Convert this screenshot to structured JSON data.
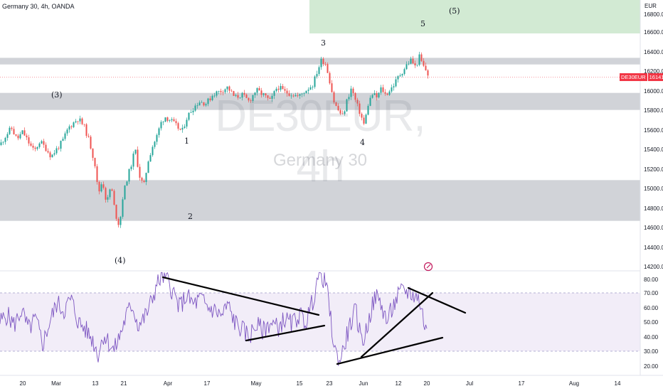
{
  "header": {
    "title": "Germany 30, 4h, OANDA"
  },
  "watermark": {
    "symbol": "DE30EUR, 4h",
    "name": "Germany 30"
  },
  "price_scale": {
    "currency": "EUR",
    "labels": [
      "16800.0",
      "16600.0",
      "16400.0",
      "16200.0",
      "16000.0",
      "15800.0",
      "15600.0",
      "15400.0",
      "15200.0",
      "15000.0",
      "14800.0",
      "14600.0",
      "14400.0",
      "14200.0"
    ]
  },
  "last_price": {
    "symbol": "DE30EUR",
    "value": "16141.1",
    "color": "#f23645"
  },
  "rsi_scale": {
    "labels": [
      "80.00",
      "70.00",
      "60.00",
      "50.00",
      "40.00",
      "30.00",
      "20.00"
    ]
  },
  "time_axis": {
    "labels": [
      "20",
      "Mar",
      "13",
      "21",
      "Apr",
      "17",
      "May",
      "15",
      "23",
      "Jun",
      "12",
      "20",
      "Jul",
      "17",
      "Aug",
      "14"
    ]
  },
  "wave_labels": [
    "(3)",
    "(4)",
    "1",
    "2",
    "3",
    "4",
    "5",
    "(5)"
  ],
  "colors": {
    "up": "#26a69a",
    "down": "#ef5350",
    "zone_gray": "#b2b5be",
    "target_zone": "#a5d6a7",
    "rsi_line": "#7e57c2",
    "rsi_band": "#ede7f6",
    "trendline": "#000000"
  },
  "chart_data": {
    "type": "candlestick",
    "title": "Germany 30, 4h, OANDA",
    "symbol": "DE30EUR",
    "ylim": [
      14100,
      16950
    ],
    "close_path": [
      [
        0,
        15420
      ],
      [
        8,
        15520
      ],
      [
        16,
        15600
      ],
      [
        24,
        15480
      ],
      [
        32,
        15560
      ],
      [
        40,
        15450
      ],
      [
        48,
        15350
      ],
      [
        56,
        15460
      ],
      [
        64,
        15390
      ],
      [
        72,
        15300
      ],
      [
        80,
        15380
      ],
      [
        88,
        15460
      ],
      [
        96,
        15600
      ],
      [
        104,
        15660
      ],
      [
        110,
        15700
      ],
      [
        118,
        15620
      ],
      [
        126,
        15450
      ],
      [
        134,
        15200
      ],
      [
        138,
        14900
      ],
      [
        144,
        15050
      ],
      [
        150,
        14800
      ],
      [
        156,
        15000
      ],
      [
        162,
        14700
      ],
      [
        168,
        14560
      ],
      [
        172,
        14850
      ],
      [
        178,
        15050
      ],
      [
        184,
        15200
      ],
      [
        190,
        15380
      ],
      [
        196,
        15100
      ],
      [
        202,
        14980
      ],
      [
        208,
        15250
      ],
      [
        214,
        15400
      ],
      [
        220,
        15500
      ],
      [
        226,
        15650
      ],
      [
        232,
        15720
      ],
      [
        240,
        15680
      ],
      [
        248,
        15620
      ],
      [
        256,
        15560
      ],
      [
        262,
        15700
      ],
      [
        270,
        15800
      ],
      [
        280,
        15880
      ],
      [
        290,
        15860
      ],
      [
        300,
        15960
      ],
      [
        310,
        15990
      ],
      [
        320,
        16030
      ],
      [
        330,
        15920
      ],
      [
        340,
        15950
      ],
      [
        350,
        15880
      ],
      [
        360,
        16000
      ],
      [
        370,
        15950
      ],
      [
        380,
        15880
      ],
      [
        390,
        16040
      ],
      [
        400,
        15980
      ],
      [
        410,
        15960
      ],
      [
        420,
        15930
      ],
      [
        430,
        16000
      ],
      [
        440,
        16060
      ],
      [
        446,
        16200
      ],
      [
        452,
        16320
      ],
      [
        458,
        16280
      ],
      [
        464,
        16080
      ],
      [
        470,
        15860
      ],
      [
        476,
        15780
      ],
      [
        482,
        15720
      ],
      [
        488,
        15900
      ],
      [
        494,
        16020
      ],
      [
        500,
        15880
      ],
      [
        506,
        15760
      ],
      [
        512,
        15630
      ],
      [
        518,
        15870
      ],
      [
        524,
        15960
      ],
      [
        530,
        15920
      ],
      [
        536,
        16020
      ],
      [
        542,
        15950
      ],
      [
        548,
        16000
      ],
      [
        554,
        16060
      ],
      [
        560,
        16140
      ],
      [
        566,
        16200
      ],
      [
        572,
        16270
      ],
      [
        578,
        16320
      ],
      [
        584,
        16240
      ],
      [
        590,
        16360
      ],
      [
        594,
        16260
      ],
      [
        598,
        16220
      ],
      [
        603,
        16141
      ]
    ],
    "rsi_path": [
      [
        0,
        50
      ],
      [
        10,
        55
      ],
      [
        20,
        48
      ],
      [
        30,
        58
      ],
      [
        40,
        45
      ],
      [
        50,
        52
      ],
      [
        60,
        35
      ],
      [
        70,
        50
      ],
      [
        80,
        63
      ],
      [
        90,
        58
      ],
      [
        100,
        66
      ],
      [
        110,
        50
      ],
      [
        120,
        45
      ],
      [
        130,
        38
      ],
      [
        138,
        28
      ],
      [
        146,
        42
      ],
      [
        154,
        35
      ],
      [
        160,
        30
      ],
      [
        168,
        40
      ],
      [
        178,
        55
      ],
      [
        186,
        62
      ],
      [
        194,
        48
      ],
      [
        202,
        52
      ],
      [
        210,
        60
      ],
      [
        220,
        75
      ],
      [
        228,
        82
      ],
      [
        236,
        78
      ],
      [
        244,
        70
      ],
      [
        252,
        60
      ],
      [
        262,
        68
      ],
      [
        272,
        62
      ],
      [
        282,
        66
      ],
      [
        292,
        60
      ],
      [
        302,
        58
      ],
      [
        312,
        54
      ],
      [
        320,
        62
      ],
      [
        330,
        50
      ],
      [
        340,
        45
      ],
      [
        350,
        40
      ],
      [
        360,
        48
      ],
      [
        370,
        44
      ],
      [
        380,
        50
      ],
      [
        390,
        46
      ],
      [
        400,
        52
      ],
      [
        410,
        48
      ],
      [
        420,
        55
      ],
      [
        430,
        50
      ],
      [
        440,
        65
      ],
      [
        446,
        80
      ],
      [
        452,
        82
      ],
      [
        458,
        78
      ],
      [
        464,
        55
      ],
      [
        470,
        32
      ],
      [
        476,
        22
      ],
      [
        482,
        30
      ],
      [
        490,
        45
      ],
      [
        500,
        58
      ],
      [
        506,
        42
      ],
      [
        512,
        38
      ],
      [
        520,
        55
      ],
      [
        528,
        68
      ],
      [
        536,
        62
      ],
      [
        544,
        50
      ],
      [
        552,
        60
      ],
      [
        560,
        68
      ],
      [
        568,
        72
      ],
      [
        576,
        70
      ],
      [
        584,
        68
      ],
      [
        590,
        65
      ],
      [
        596,
        50
      ],
      [
        600,
        42
      ]
    ],
    "zones": [
      {
        "from": 16270,
        "to": 16340
      },
      {
        "from": 15790,
        "to": 15970
      },
      {
        "from": 14620,
        "to": 15050
      }
    ],
    "target_zone": {
      "from": 16600,
      "to": 16950
    },
    "rsi_levels": [
      70,
      30
    ]
  }
}
